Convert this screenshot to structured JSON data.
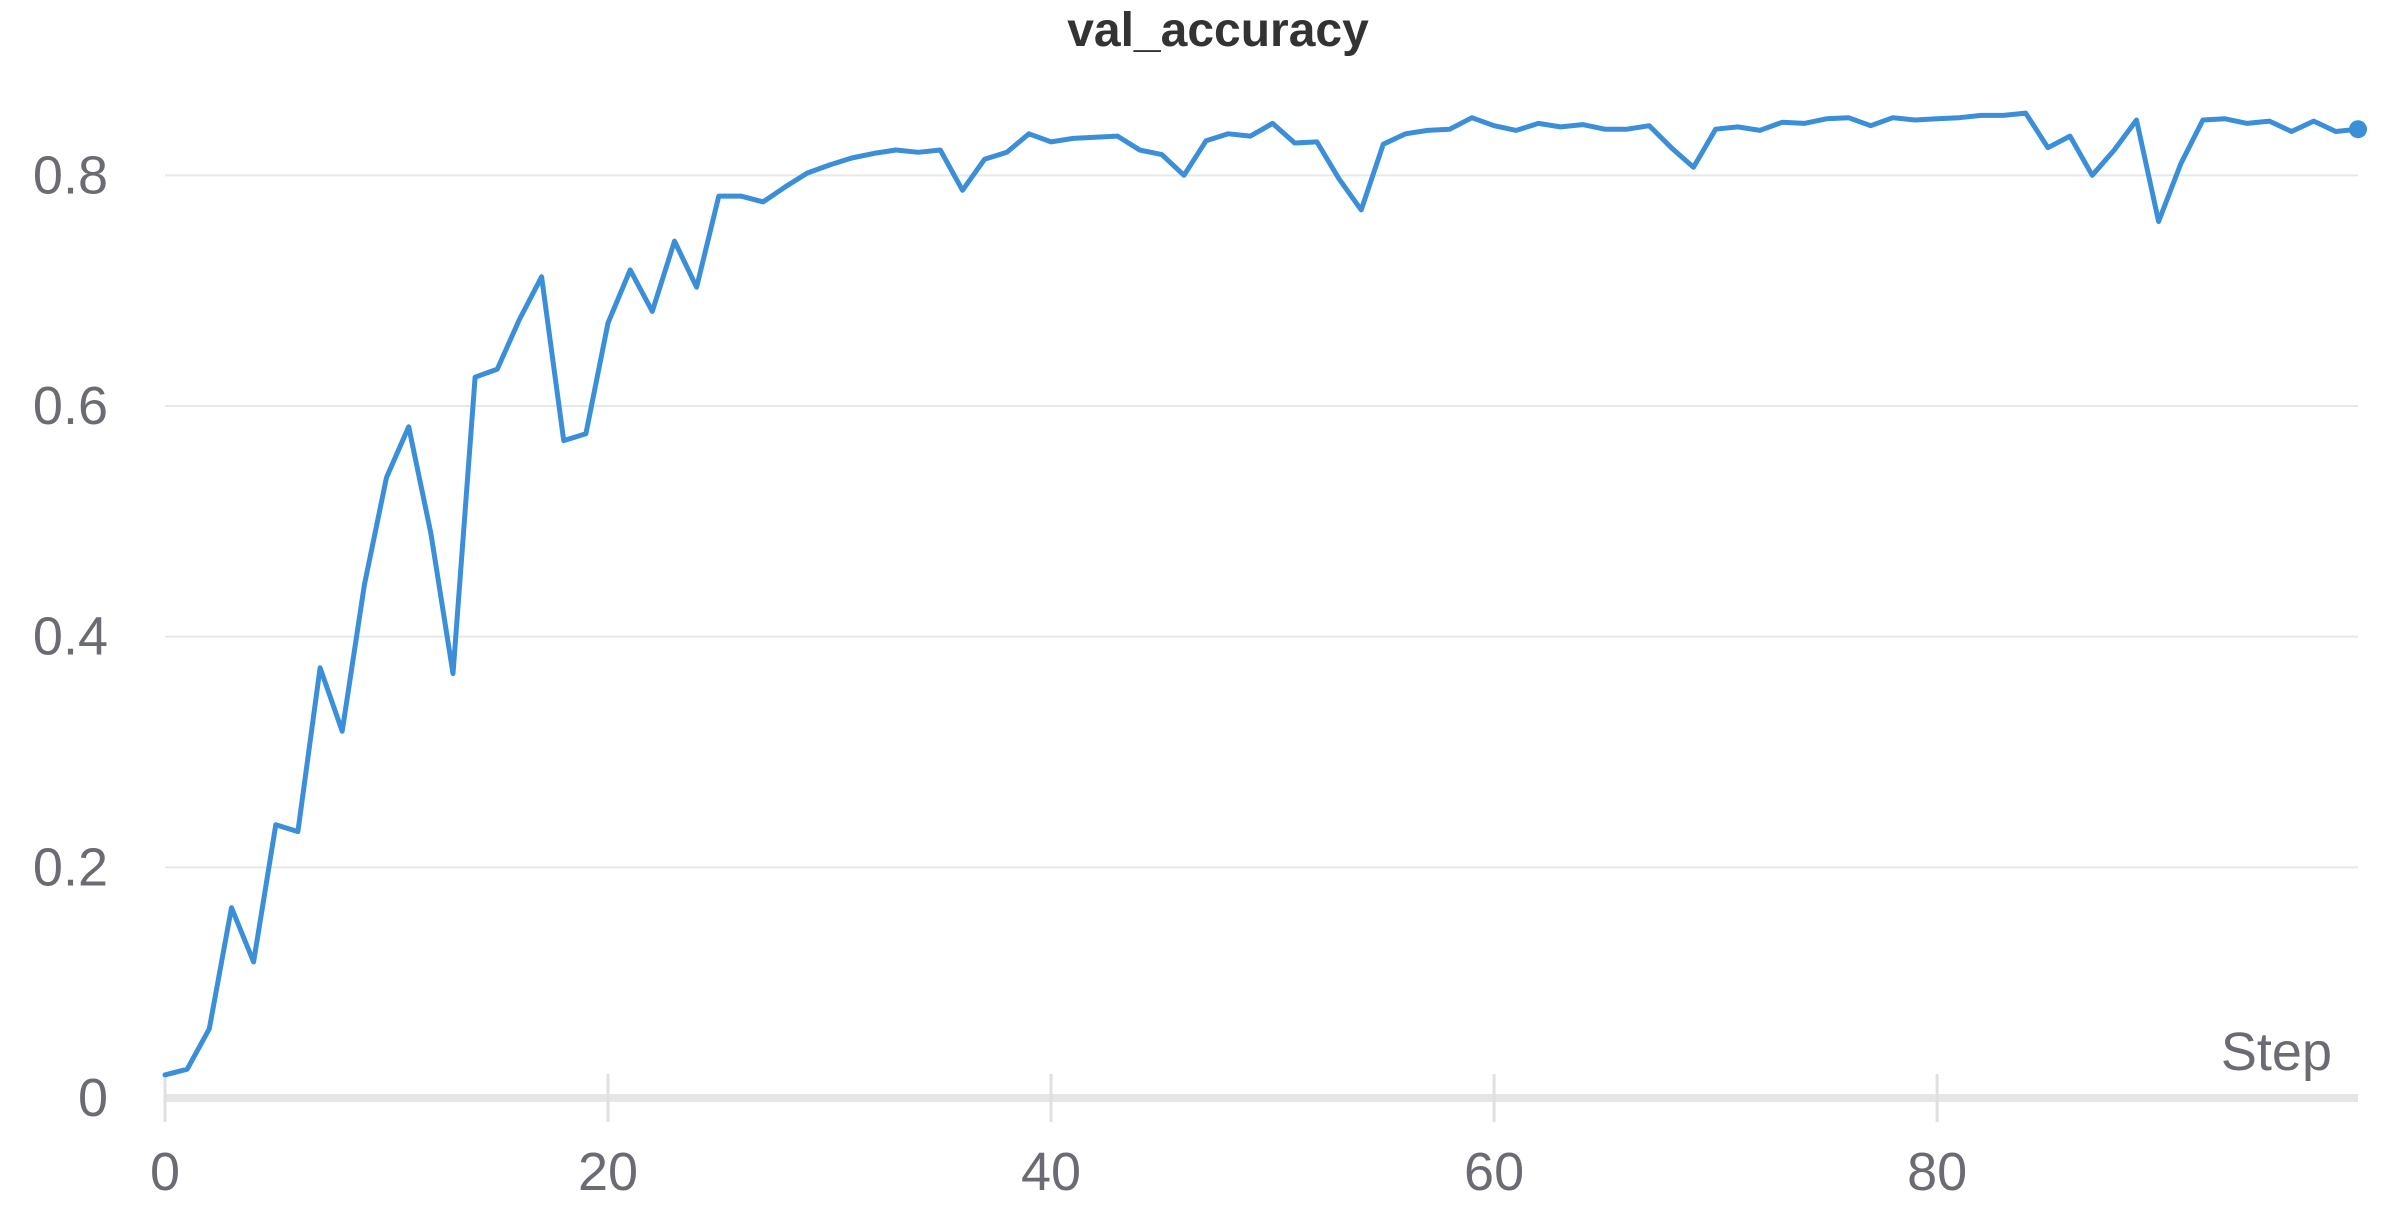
{
  "chart_data": {
    "type": "line",
    "title": "val_accuracy",
    "xlabel": "Step",
    "ylabel": "",
    "xlim": [
      0,
      99
    ],
    "ylim": [
      0,
      0.9
    ],
    "x_ticks": [
      0,
      20,
      40,
      60,
      80
    ],
    "x_tick_labels": [
      "0",
      "20",
      "40",
      "60",
      "80"
    ],
    "y_ticks": [
      0,
      0.2,
      0.4,
      0.6,
      0.8
    ],
    "y_tick_labels": [
      "0",
      "0.2",
      "0.4",
      "0.6",
      "0.8"
    ],
    "grid": true,
    "legend": "none",
    "series": [
      {
        "color": "#3a8fd8",
        "x": [
          0,
          1,
          2,
          3,
          4,
          5,
          6,
          7,
          8,
          9,
          10,
          11,
          12,
          13,
          14,
          15,
          16,
          17,
          18,
          19,
          20,
          21,
          22,
          23,
          24,
          25,
          26,
          27,
          28,
          29,
          30,
          31,
          32,
          33,
          34,
          35,
          36,
          37,
          38,
          39,
          40,
          41,
          42,
          43,
          44,
          45,
          46,
          47,
          48,
          49,
          50,
          51,
          52,
          53,
          54,
          55,
          56,
          57,
          58,
          59,
          60,
          61,
          62,
          63,
          64,
          65,
          66,
          67,
          68,
          69,
          70,
          71,
          72,
          73,
          74,
          75,
          76,
          77,
          78,
          79,
          80,
          81,
          82,
          83,
          84,
          85,
          86,
          87,
          88,
          89,
          90,
          91,
          92,
          93,
          94,
          95,
          96,
          97,
          98,
          99
        ],
        "y": [
          0.02,
          0.025,
          0.06,
          0.165,
          0.118,
          0.237,
          0.231,
          0.373,
          0.318,
          0.445,
          0.538,
          0.582,
          0.49,
          0.368,
          0.625,
          0.632,
          0.675,
          0.712,
          0.57,
          0.576,
          0.672,
          0.718,
          0.682,
          0.743,
          0.703,
          0.782,
          0.782,
          0.777,
          0.79,
          0.802,
          0.809,
          0.815,
          0.819,
          0.822,
          0.82,
          0.822,
          0.787,
          0.814,
          0.82,
          0.836,
          0.829,
          0.832,
          0.833,
          0.834,
          0.822,
          0.818,
          0.8,
          0.83,
          0.836,
          0.834,
          0.845,
          0.828,
          0.829,
          0.797,
          0.77,
          0.827,
          0.836,
          0.839,
          0.84,
          0.85,
          0.843,
          0.839,
          0.845,
          0.842,
          0.844,
          0.84,
          0.84,
          0.843,
          0.824,
          0.807,
          0.84,
          0.842,
          0.839,
          0.846,
          0.845,
          0.849,
          0.85,
          0.843,
          0.85,
          0.848,
          0.849,
          0.85,
          0.852,
          0.852,
          0.854,
          0.824,
          0.834,
          0.8,
          0.822,
          0.848,
          0.76,
          0.81,
          0.848,
          0.849,
          0.845,
          0.847,
          0.838,
          0.847,
          0.838,
          0.84
        ]
      }
    ]
  }
}
